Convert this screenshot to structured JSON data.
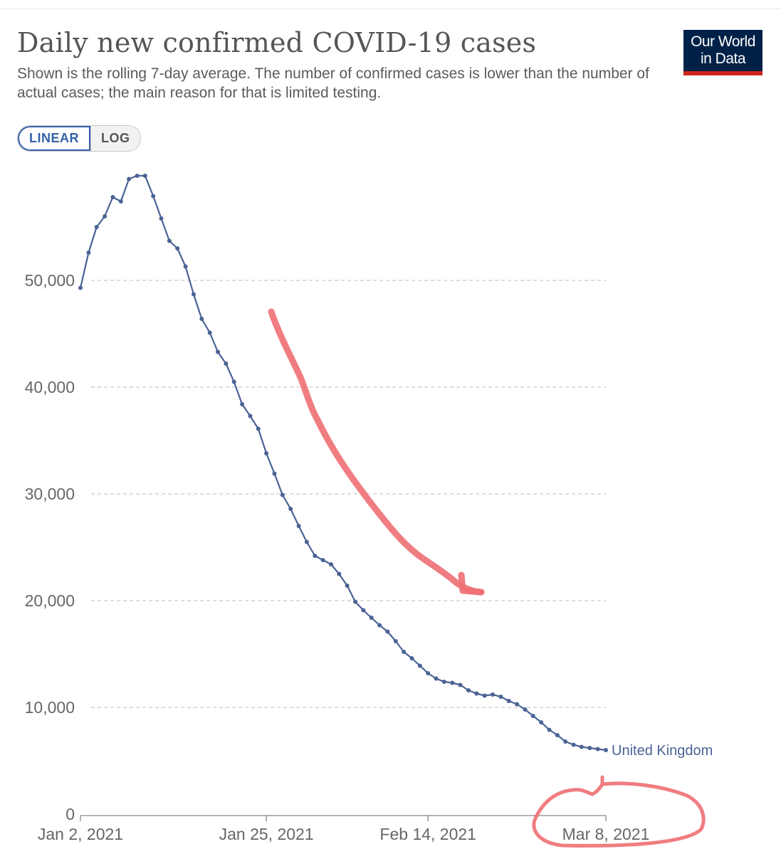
{
  "header": {
    "title": "Daily new confirmed COVID-19 cases",
    "subtitle": "Shown is the rolling 7-day average. The number of confirmed cases is lower than the number of actual cases; the main reason for that is limited testing.",
    "logo_line1": "Our World",
    "logo_line2": "in Data"
  },
  "controls": {
    "linear_label": "LINEAR",
    "log_label": "LOG",
    "selected": "LINEAR"
  },
  "colors": {
    "series": "#4a6295",
    "annotation": "#ee6f73",
    "logo_bg": "#002147",
    "logo_accent": "#ce261e"
  },
  "chart_data": {
    "type": "line",
    "title": "Daily new confirmed COVID-19 cases",
    "x_axis": {
      "range": [
        "2021-01-02",
        "2021-03-08"
      ],
      "ticks": [
        {
          "date": "2021-01-02",
          "label": "Jan 2, 2021"
        },
        {
          "date": "2021-01-25",
          "label": "Jan 25, 2021"
        },
        {
          "date": "2021-02-14",
          "label": "Feb 14, 2021"
        },
        {
          "date": "2021-03-08",
          "label": "Mar 8, 2021"
        }
      ]
    },
    "y_axis": {
      "scale": "linear",
      "range": [
        0,
        60000
      ],
      "ticks": [
        {
          "value": 0,
          "label": "0"
        },
        {
          "value": 10000,
          "label": "10,000"
        },
        {
          "value": 20000,
          "label": "20,000"
        },
        {
          "value": 30000,
          "label": "30,000"
        },
        {
          "value": 40000,
          "label": "40,000"
        },
        {
          "value": 50000,
          "label": "50,000"
        }
      ],
      "grid": true
    },
    "series": [
      {
        "name": "United Kingdom",
        "points": [
          {
            "date": "2021-01-02",
            "value": 49300
          },
          {
            "date": "2021-01-03",
            "value": 52600
          },
          {
            "date": "2021-01-04",
            "value": 55000
          },
          {
            "date": "2021-01-05",
            "value": 56000
          },
          {
            "date": "2021-01-06",
            "value": 57800
          },
          {
            "date": "2021-01-07",
            "value": 57400
          },
          {
            "date": "2021-01-08",
            "value": 59500
          },
          {
            "date": "2021-01-09",
            "value": 59800
          },
          {
            "date": "2021-01-10",
            "value": 59800
          },
          {
            "date": "2021-01-11",
            "value": 57900
          },
          {
            "date": "2021-01-12",
            "value": 55800
          },
          {
            "date": "2021-01-13",
            "value": 53700
          },
          {
            "date": "2021-01-14",
            "value": 53000
          },
          {
            "date": "2021-01-15",
            "value": 51300
          },
          {
            "date": "2021-01-16",
            "value": 48700
          },
          {
            "date": "2021-01-17",
            "value": 46400
          },
          {
            "date": "2021-01-18",
            "value": 45100
          },
          {
            "date": "2021-01-19",
            "value": 43300
          },
          {
            "date": "2021-01-20",
            "value": 42200
          },
          {
            "date": "2021-01-21",
            "value": 40500
          },
          {
            "date": "2021-01-22",
            "value": 38400
          },
          {
            "date": "2021-01-23",
            "value": 37300
          },
          {
            "date": "2021-01-24",
            "value": 36100
          },
          {
            "date": "2021-01-25",
            "value": 33800
          },
          {
            "date": "2021-01-26",
            "value": 31900
          },
          {
            "date": "2021-01-27",
            "value": 29900
          },
          {
            "date": "2021-01-28",
            "value": 28600
          },
          {
            "date": "2021-01-29",
            "value": 27000
          },
          {
            "date": "2021-01-30",
            "value": 25500
          },
          {
            "date": "2021-01-31",
            "value": 24200
          },
          {
            "date": "2021-02-01",
            "value": 23800
          },
          {
            "date": "2021-02-02",
            "value": 23400
          },
          {
            "date": "2021-02-03",
            "value": 22500
          },
          {
            "date": "2021-02-04",
            "value": 21400
          },
          {
            "date": "2021-02-05",
            "value": 19900
          },
          {
            "date": "2021-02-06",
            "value": 19100
          },
          {
            "date": "2021-02-07",
            "value": 18400
          },
          {
            "date": "2021-02-08",
            "value": 17700
          },
          {
            "date": "2021-02-09",
            "value": 17100
          },
          {
            "date": "2021-02-10",
            "value": 16200
          },
          {
            "date": "2021-02-11",
            "value": 15200
          },
          {
            "date": "2021-02-12",
            "value": 14600
          },
          {
            "date": "2021-02-13",
            "value": 13900
          },
          {
            "date": "2021-02-14",
            "value": 13200
          },
          {
            "date": "2021-02-15",
            "value": 12700
          },
          {
            "date": "2021-02-16",
            "value": 12400
          },
          {
            "date": "2021-02-17",
            "value": 12300
          },
          {
            "date": "2021-02-18",
            "value": 12100
          },
          {
            "date": "2021-02-19",
            "value": 11600
          },
          {
            "date": "2021-02-20",
            "value": 11300
          },
          {
            "date": "2021-02-21",
            "value": 11100
          },
          {
            "date": "2021-02-22",
            "value": 11200
          },
          {
            "date": "2021-02-23",
            "value": 11000
          },
          {
            "date": "2021-02-24",
            "value": 10600
          },
          {
            "date": "2021-02-25",
            "value": 10300
          },
          {
            "date": "2021-02-26",
            "value": 9800
          },
          {
            "date": "2021-02-27",
            "value": 9200
          },
          {
            "date": "2021-02-28",
            "value": 8600
          },
          {
            "date": "2021-03-01",
            "value": 7900
          },
          {
            "date": "2021-03-02",
            "value": 7400
          },
          {
            "date": "2021-03-03",
            "value": 6800
          },
          {
            "date": "2021-03-04",
            "value": 6500
          },
          {
            "date": "2021-03-05",
            "value": 6300
          },
          {
            "date": "2021-03-06",
            "value": 6200
          },
          {
            "date": "2021-03-07",
            "value": 6100
          },
          {
            "date": "2021-03-08",
            "value": 6000
          }
        ]
      }
    ],
    "legend": "end-of-line label"
  }
}
